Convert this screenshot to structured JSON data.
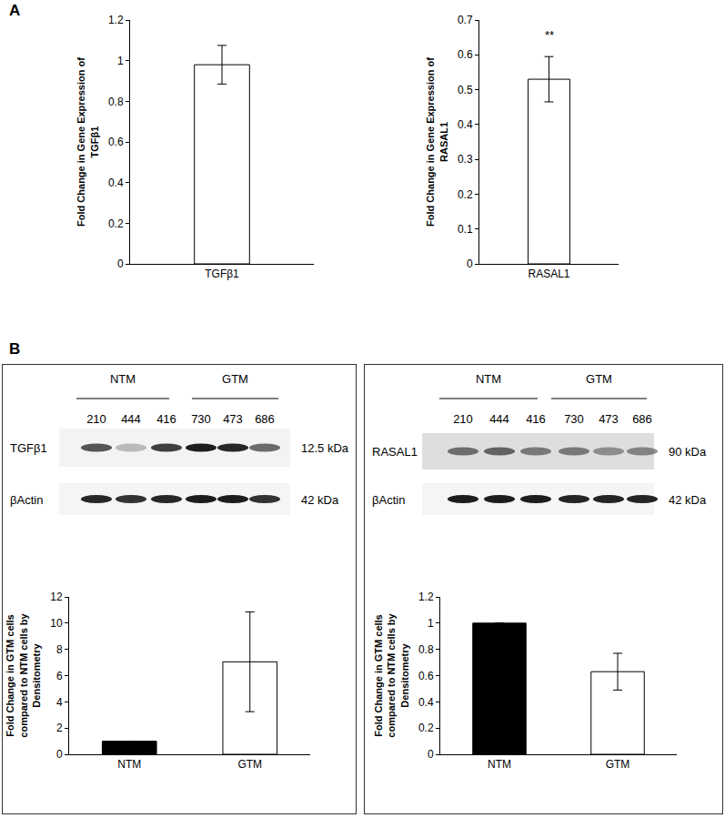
{
  "panel_labels": [
    "A",
    "B"
  ],
  "chart_data": [
    {
      "type": "bar",
      "categories": [
        "TGFβ1"
      ],
      "values": [
        0.98
      ],
      "errors": [
        0.095
      ],
      "color": "#ffffff",
      "ylabel": "Fold Change in Gene Expression of\nTGFβ1",
      "ylim": [
        0,
        1.2
      ],
      "yticks": [
        0,
        0.2,
        0.4,
        0.6,
        0.8,
        1,
        1.2
      ]
    },
    {
      "type": "bar",
      "categories": [
        "RASAL1"
      ],
      "values": [
        0.53
      ],
      "errors": [
        0.065
      ],
      "color": "#ffffff",
      "ylabel": "Fold Change in Gene Expression of\nRASAL1",
      "ylim": [
        0,
        0.7
      ],
      "yticks": [
        0,
        0.1,
        0.2,
        0.3,
        0.4,
        0.5,
        0.6,
        0.7
      ],
      "annotations": [
        {
          "category": "RASAL1",
          "text": "**"
        }
      ]
    },
    {
      "type": "bar",
      "categories": [
        "NTM",
        "GTM"
      ],
      "values": [
        1,
        7.05
      ],
      "errors": [
        null,
        3.8
      ],
      "colors": [
        "#000000",
        "#ffffff"
      ],
      "ylabel": "Fold Change in GTM cells\ncompared to NTM cells by\nDensitometry",
      "ylim": [
        0,
        12
      ],
      "yticks": [
        0,
        2,
        4,
        6,
        8,
        10,
        12
      ]
    },
    {
      "type": "bar",
      "categories": [
        "NTM",
        "GTM"
      ],
      "values": [
        1,
        0.63
      ],
      "errors": [
        null,
        0.14
      ],
      "colors": [
        "#000000",
        "#ffffff"
      ],
      "ylabel": "Fold Change in GTM cells\ncompared to NTM cells by\nDensitometry",
      "ylim": [
        0,
        1.2
      ],
      "yticks": [
        0,
        0.2,
        0.4,
        0.6,
        0.8,
        1,
        1.2
      ]
    }
  ],
  "blots": [
    {
      "groups": [
        "NTM",
        "GTM"
      ],
      "lanes": [
        "210",
        "444",
        "416",
        "730",
        "473",
        "686"
      ],
      "rows": [
        {
          "label": "TGFβ1",
          "size": "12.5 kDa"
        },
        {
          "label": "βActin",
          "size": "42 kDa"
        }
      ]
    },
    {
      "groups": [
        "NTM",
        "GTM"
      ],
      "lanes": [
        "210",
        "444",
        "416",
        "730",
        "473",
        "686"
      ],
      "rows": [
        {
          "label": "RASAL1",
          "size": "90 kDa"
        },
        {
          "label": "βActin",
          "size": "42 kDa"
        }
      ]
    }
  ]
}
